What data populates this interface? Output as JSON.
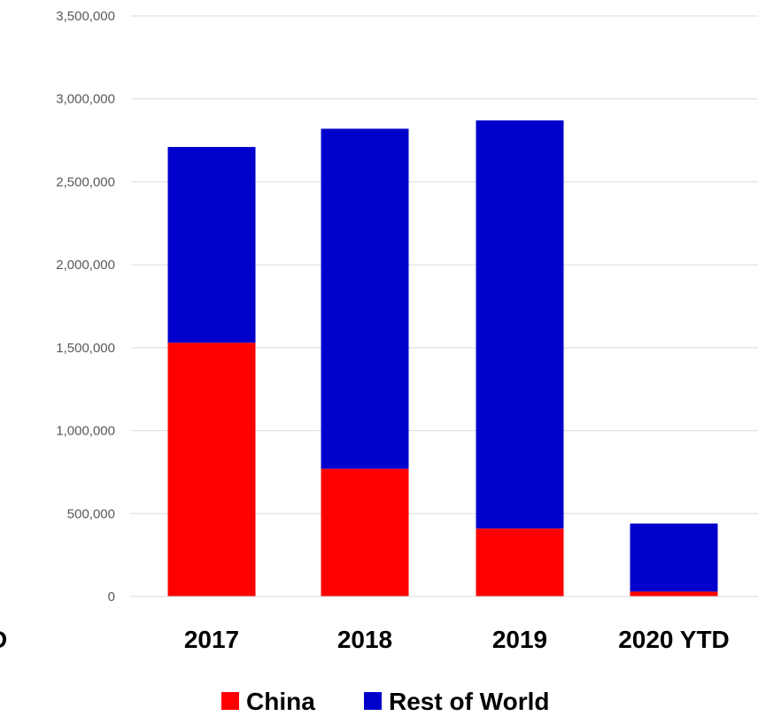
{
  "chart_data": {
    "type": "bar",
    "stacked": true,
    "categories": [
      "2017",
      "2018",
      "2019",
      "2020 YTD"
    ],
    "series": [
      {
        "name": "China",
        "color": "#ff0000",
        "values": [
          1530000,
          770000,
          410000,
          30000
        ]
      },
      {
        "name": "Rest of World",
        "color": "#0000cc",
        "values": [
          1180000,
          2050000,
          2460000,
          410000
        ]
      }
    ],
    "ylim": [
      0,
      3500000
    ],
    "yticks": [
      0,
      500000,
      1000000,
      1500000,
      2000000,
      2500000,
      3000000,
      3500000
    ],
    "ytick_labels": [
      "0",
      "500,000",
      "1,000,000",
      "1,500,000",
      "2,000,000",
      "2,500,000",
      "3,000,000",
      "3,500,000"
    ],
    "clipped_left_label": "D",
    "grid": true,
    "legend_position": "bottom"
  }
}
